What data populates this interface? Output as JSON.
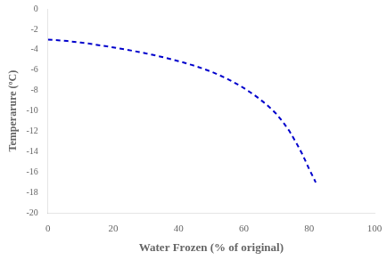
{
  "chart_data": {
    "type": "line",
    "xlabel": "Water Frozen (% of original)",
    "ylabel": "Temperarure (ºC)",
    "x": [
      0,
      2,
      4,
      6,
      8,
      10,
      12,
      14,
      16,
      18,
      20,
      22,
      24,
      26,
      28,
      30,
      32,
      34,
      36,
      38,
      40,
      42,
      44,
      46,
      48,
      50,
      52,
      54,
      56,
      58,
      60,
      62,
      64,
      66,
      68,
      70,
      72,
      74,
      76,
      78,
      80,
      82
    ],
    "values": [
      -3.0,
      -3.05,
      -3.1,
      -3.15,
      -3.22,
      -3.3,
      -3.38,
      -3.47,
      -3.57,
      -3.67,
      -3.77,
      -3.88,
      -3.99,
      -4.11,
      -4.23,
      -4.36,
      -4.5,
      -4.64,
      -4.79,
      -4.95,
      -5.12,
      -5.3,
      -5.49,
      -5.69,
      -5.91,
      -6.15,
      -6.42,
      -6.71,
      -7.03,
      -7.38,
      -7.76,
      -8.18,
      -8.63,
      -9.13,
      -9.68,
      -10.3,
      -11.1,
      -12.0,
      -13.1,
      -14.3,
      -15.7,
      -17.0
    ],
    "color": "#0000CC",
    "line_style": "dashed",
    "xlim": [
      0,
      100
    ],
    "ylim": [
      -20,
      0
    ],
    "xticks": [
      0,
      20,
      40,
      60,
      80,
      100
    ],
    "yticks": [
      0,
      -2,
      -4,
      -6,
      -8,
      -10,
      -12,
      -14,
      -16,
      -18,
      -20
    ],
    "grid": false
  }
}
